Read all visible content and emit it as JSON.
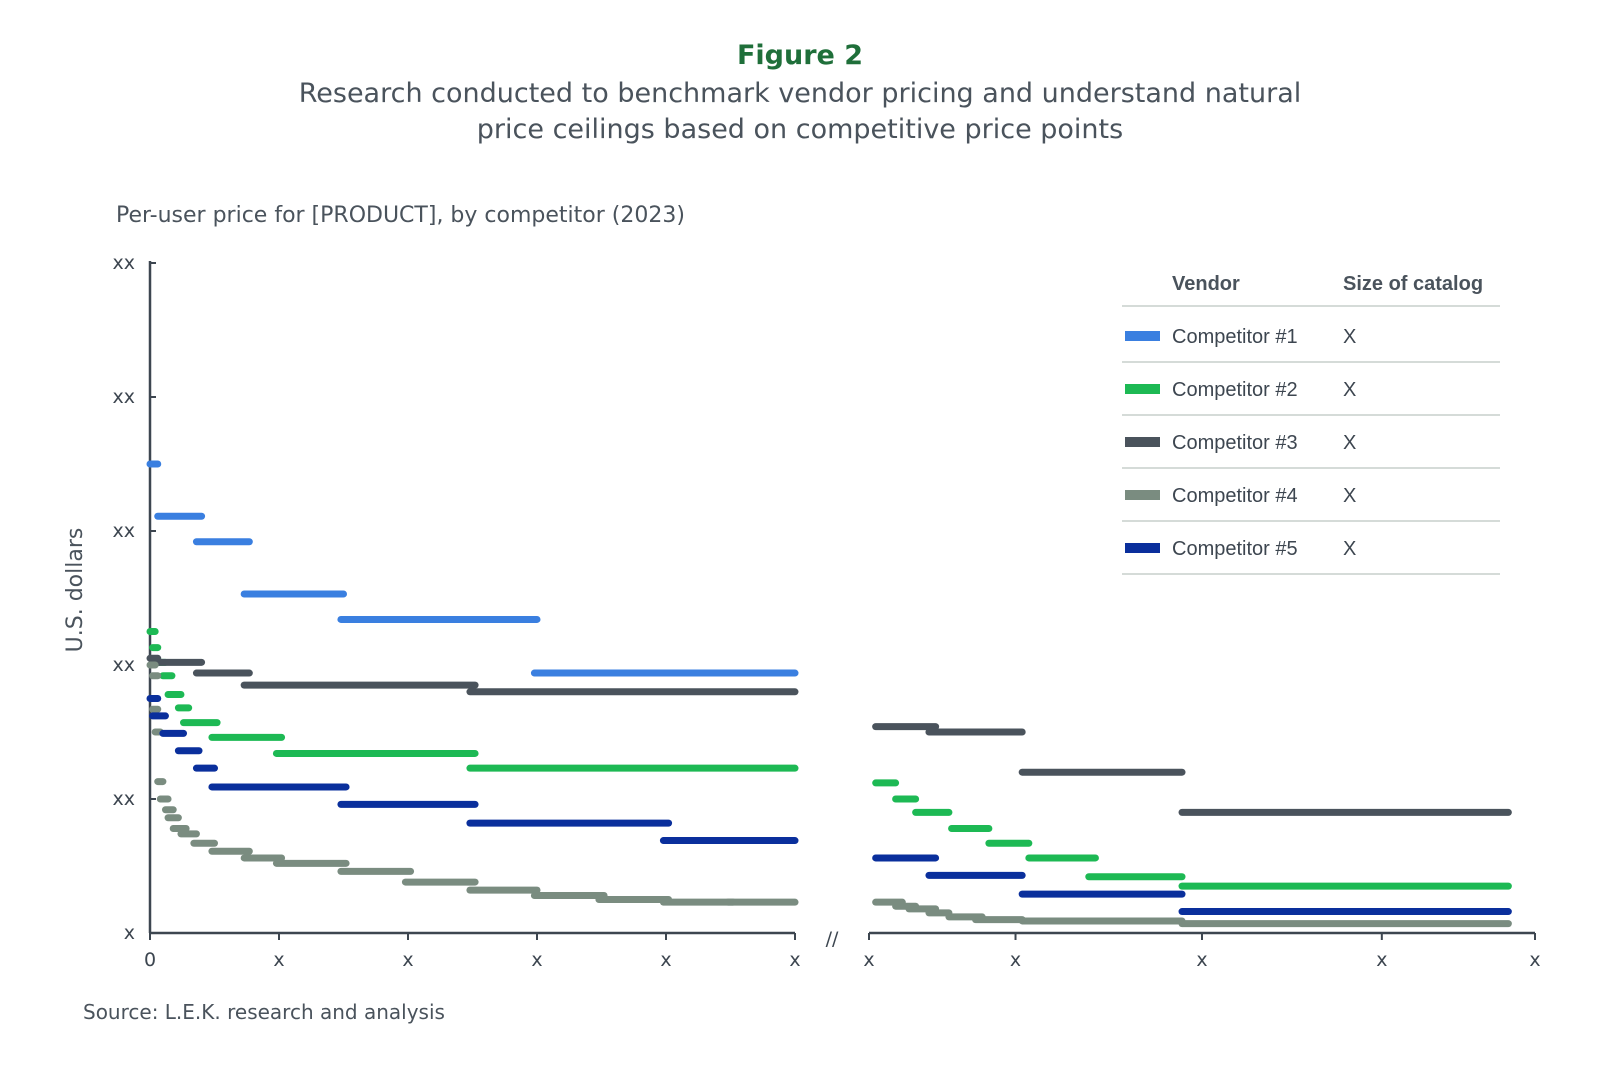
{
  "header": {
    "figure_label": "Figure 2",
    "title_line1": "Research conducted to benchmark vendor pricing and understand natural",
    "title_line2": "price ceilings based on competitive price points"
  },
  "source": "Source: L.E.K. research and analysis",
  "chart_data": {
    "type": "line",
    "subtitle": "Per-user price for [PRODUCT], by competitor (2023)",
    "ylabel": "U.S. dollars",
    "y_tick_labels": [
      "x",
      "xx",
      "xx",
      "xx",
      "xx",
      "xx"
    ],
    "ylim": [
      0,
      5
    ],
    "x_tick_labels_left": [
      "0",
      "x",
      "x",
      "x",
      "x",
      "x"
    ],
    "x_tick_labels_right": [
      "x",
      "x",
      "x",
      "x",
      "x"
    ],
    "axis_break_symbol": "//",
    "grid": false,
    "legend": {
      "placement": "top-right",
      "header_vendor": "Vendor",
      "header_size": "Size of catalog",
      "rows": [
        {
          "series": "Competitor #1",
          "size": "X"
        },
        {
          "series": "Competitor #2",
          "size": "X"
        },
        {
          "series": "Competitor #3",
          "size": "X"
        },
        {
          "series": "Competitor #4",
          "size": "X"
        },
        {
          "series": "Competitor #5",
          "size": "X"
        }
      ]
    },
    "series": [
      {
        "name": "Competitor #1",
        "color": "#3a7fe0",
        "steps": [
          [
            0.0,
            0.06,
            3.5
          ],
          [
            0.06,
            0.4,
            3.11
          ],
          [
            0.36,
            0.77,
            2.92
          ],
          [
            0.73,
            1.5,
            2.53
          ],
          [
            1.48,
            3.0,
            2.34
          ],
          [
            2.98,
            5.0,
            1.94
          ]
        ]
      },
      {
        "name": "Competitor #2",
        "color": "#1db954",
        "steps": [
          [
            0.0,
            0.04,
            2.25
          ],
          [
            0.02,
            0.06,
            2.13
          ],
          [
            0.04,
            0.12,
            2.02
          ],
          [
            0.1,
            0.17,
            1.92
          ],
          [
            0.14,
            0.24,
            1.78
          ],
          [
            0.22,
            0.3,
            1.68
          ],
          [
            0.26,
            0.52,
            1.57
          ],
          [
            0.48,
            1.02,
            1.46
          ],
          [
            0.98,
            2.52,
            1.34
          ],
          [
            2.48,
            5.0,
            1.23
          ],
          [
            5.55,
            5.7,
            1.12
          ],
          [
            5.7,
            5.85,
            1.0
          ],
          [
            5.85,
            6.1,
            0.9
          ],
          [
            6.12,
            6.4,
            0.78
          ],
          [
            6.4,
            6.7,
            0.67
          ],
          [
            6.7,
            7.2,
            0.56
          ],
          [
            7.15,
            7.85,
            0.42
          ],
          [
            7.85,
            10.3,
            0.35
          ]
        ]
      },
      {
        "name": "Competitor #3",
        "color": "#4a535c",
        "steps": [
          [
            0.0,
            0.06,
            2.05
          ],
          [
            0.04,
            0.4,
            2.02
          ],
          [
            0.36,
            0.77,
            1.94
          ],
          [
            0.73,
            2.52,
            1.85
          ],
          [
            2.48,
            5.0,
            1.8
          ],
          [
            5.55,
            6.0,
            1.54
          ],
          [
            5.95,
            6.65,
            1.5
          ],
          [
            6.65,
            7.85,
            1.2
          ],
          [
            7.85,
            10.3,
            0.9
          ]
        ]
      },
      {
        "name": "Competitor #4",
        "color": "#7a8c80",
        "steps": [
          [
            0.0,
            0.04,
            2.0
          ],
          [
            0.02,
            0.06,
            1.92
          ],
          [
            0.02,
            0.06,
            1.67
          ],
          [
            0.04,
            0.08,
            1.5
          ],
          [
            0.06,
            0.1,
            1.13
          ],
          [
            0.08,
            0.14,
            1.0
          ],
          [
            0.12,
            0.18,
            0.92
          ],
          [
            0.14,
            0.22,
            0.86
          ],
          [
            0.18,
            0.28,
            0.78
          ],
          [
            0.24,
            0.36,
            0.74
          ],
          [
            0.34,
            0.5,
            0.67
          ],
          [
            0.48,
            0.77,
            0.61
          ],
          [
            0.73,
            1.02,
            0.56
          ],
          [
            0.98,
            1.52,
            0.52
          ],
          [
            1.48,
            2.02,
            0.46
          ],
          [
            1.98,
            2.52,
            0.38
          ],
          [
            2.48,
            3.0,
            0.32
          ],
          [
            2.98,
            3.52,
            0.28
          ],
          [
            3.48,
            4.02,
            0.25
          ],
          [
            3.98,
            4.52,
            0.23
          ],
          [
            4.48,
            5.0,
            0.23
          ],
          [
            5.55,
            5.75,
            0.23
          ],
          [
            5.7,
            5.85,
            0.2
          ],
          [
            5.8,
            6.0,
            0.18
          ],
          [
            5.95,
            6.1,
            0.15
          ],
          [
            6.1,
            6.35,
            0.12
          ],
          [
            6.3,
            6.65,
            0.1
          ],
          [
            6.65,
            7.85,
            0.09
          ],
          [
            7.85,
            10.3,
            0.07
          ]
        ]
      },
      {
        "name": "Competitor #5",
        "color": "#0a2f9c",
        "steps": [
          [
            0.0,
            0.06,
            1.75
          ],
          [
            0.02,
            0.12,
            1.62
          ],
          [
            0.1,
            0.26,
            1.49
          ],
          [
            0.22,
            0.38,
            1.36
          ],
          [
            0.36,
            0.5,
            1.23
          ],
          [
            0.48,
            1.52,
            1.09
          ],
          [
            1.48,
            2.52,
            0.96
          ],
          [
            2.48,
            4.02,
            0.82
          ],
          [
            3.98,
            5.0,
            0.69
          ],
          [
            5.55,
            6.0,
            0.56
          ],
          [
            5.95,
            6.65,
            0.43
          ],
          [
            6.65,
            7.85,
            0.29
          ],
          [
            7.85,
            10.3,
            0.16
          ]
        ]
      }
    ]
  }
}
